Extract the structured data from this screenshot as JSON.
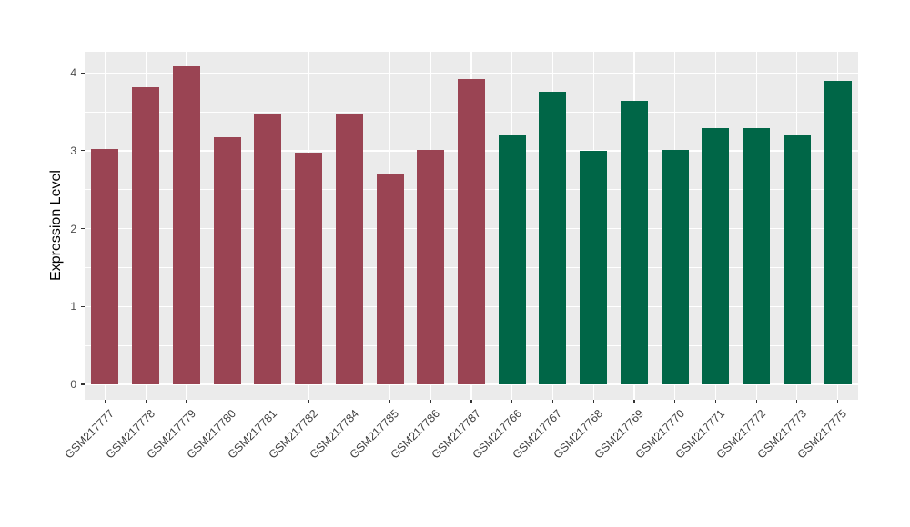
{
  "chart_data": {
    "type": "bar",
    "title": "",
    "xlabel": "",
    "ylabel": "Expression Level",
    "ylim": [
      0,
      4.27
    ],
    "yticks_major": [
      0,
      1,
      2,
      3,
      4
    ],
    "yticks_minor": [
      0.5,
      1.5,
      2.5,
      3.5
    ],
    "grid": "white major and minor gridlines on gray panel",
    "legend_position": "none",
    "categories": [
      "GSM217777",
      "GSM217778",
      "GSM217779",
      "GSM217780",
      "GSM217781",
      "GSM217782",
      "GSM217784",
      "GSM217785",
      "GSM217786",
      "GSM217787",
      "GSM217766",
      "GSM217767",
      "GSM217768",
      "GSM217769",
      "GSM217770",
      "GSM217771",
      "GSM217772",
      "GSM217773",
      "GSM217775"
    ],
    "values": [
      3.02,
      3.82,
      4.08,
      3.17,
      3.48,
      2.97,
      3.48,
      2.71,
      3.01,
      3.92,
      3.2,
      3.76,
      3.0,
      3.64,
      3.01,
      3.29,
      3.29,
      3.2,
      3.9
    ],
    "bar_groups": [
      {
        "name": "group-1-maroon",
        "color": "#9A4453",
        "start_index": 0,
        "count": 10
      },
      {
        "name": "group-2-green",
        "color": "#006647",
        "start_index": 10,
        "count": 9
      }
    ],
    "colors": {
      "panel_bg": "#EBEBEB",
      "grid": "#FFFFFF",
      "tick_mark": "#333333",
      "tick_label": "#4D4D4D",
      "axis_title": "#000000",
      "figure_bg": "#FFFFFF"
    }
  }
}
